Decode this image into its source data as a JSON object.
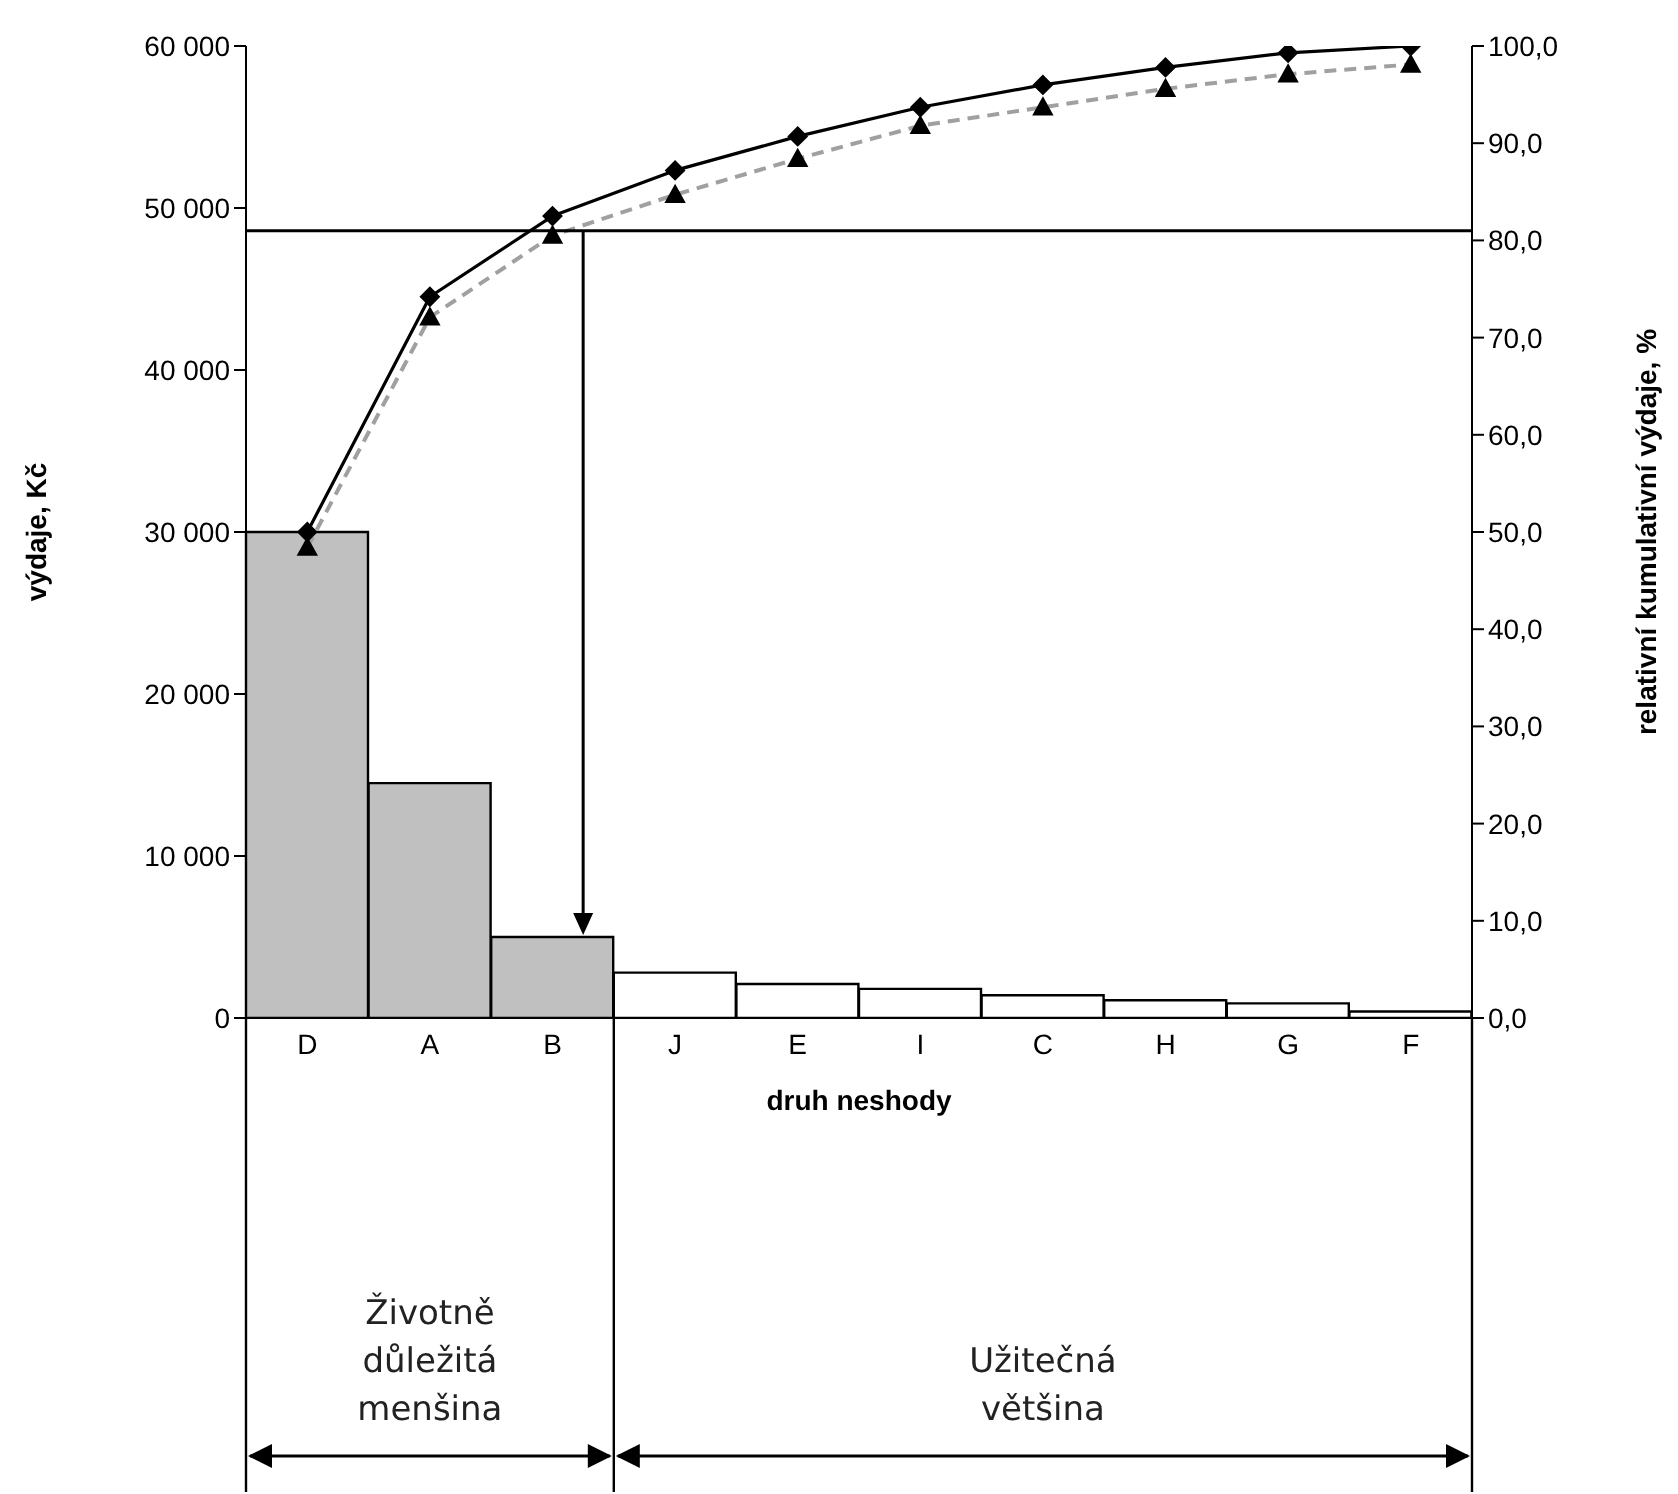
{
  "chart_data": {
    "type": "bar",
    "xlabel": "druh neshody",
    "ylabel": "výdaje, Kč",
    "y2label": "relativní kumulativní výdaje, %",
    "categories": [
      "D",
      "A",
      "B",
      "J",
      "E",
      "I",
      "C",
      "H",
      "G",
      "F"
    ],
    "series": [
      {
        "colors": [
          "#c0c0c0",
          "#c0c0c0",
          "#c0c0c0",
          "#ffffff",
          "#ffffff",
          "#ffffff",
          "#ffffff",
          "#ffffff",
          "#ffffff",
          "#ffffff"
        ],
        "values": [
          30000,
          14500,
          5000,
          2800,
          2100,
          1800,
          1400,
          1100,
          900,
          400
        ]
      },
      {
        "type": "line",
        "axis": "y2",
        "color": "#000000",
        "marker": "diamond",
        "line_style": "solid",
        "values": [
          50,
          74.2,
          82.5,
          87.2,
          90.7,
          93.7,
          96,
          97.8,
          99.3,
          100
        ]
      },
      {
        "type": "line",
        "axis": "y2",
        "color": "#a0a0a0",
        "marker": "triangle",
        "line_style": "dashed",
        "values": [
          48.4,
          72.1,
          80.5,
          84.7,
          88.4,
          91.8,
          93.7,
          95.6,
          97.1,
          98.1
        ]
      }
    ],
    "ylim": [
      0,
      60000
    ],
    "yticks": [
      {
        "value": 0,
        "label": "0"
      },
      {
        "value": 10000,
        "label": "10 000"
      },
      {
        "value": 20000,
        "label": "20 000"
      },
      {
        "value": 30000,
        "label": "30 000"
      },
      {
        "value": 40000,
        "label": "40 000"
      },
      {
        "value": 50000,
        "label": "50 000"
      },
      {
        "value": 60000,
        "label": "60 000"
      }
    ],
    "y2lim": [
      0,
      100
    ],
    "y2ticks": [
      {
        "value": 0,
        "label": "0,0"
      },
      {
        "value": 10,
        "label": "10,0"
      },
      {
        "value": 20,
        "label": "20,0"
      },
      {
        "value": 30,
        "label": "30,0"
      },
      {
        "value": 40,
        "label": "40,0"
      },
      {
        "value": 50,
        "label": "50,0"
      },
      {
        "value": 60,
        "label": "60,0"
      },
      {
        "value": 70,
        "label": "70,0"
      },
      {
        "value": 80,
        "label": "80,0"
      },
      {
        "value": 90,
        "label": "90,0"
      },
      {
        "value": 100,
        "label": "100,0"
      }
    ],
    "ref_lines": [
      {
        "axis": "y2",
        "value": 81,
        "color": "#000000"
      }
    ],
    "annotations": [
      "Životně důležitá menšina",
      "Užitečná většina"
    ]
  }
}
